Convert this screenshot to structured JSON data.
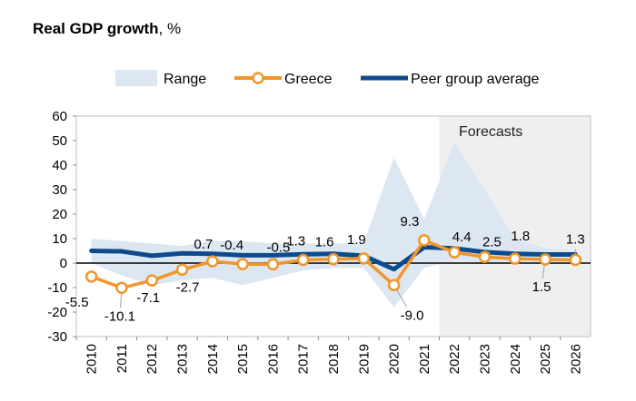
{
  "title": {
    "bold": "Real GDP growth",
    "rest": ", %"
  },
  "chart_data": {
    "type": "line",
    "title": "Real GDP growth, %",
    "x": [
      "2010",
      "2011",
      "2012",
      "2013",
      "2014",
      "2015",
      "2016",
      "2017",
      "2018",
      "2019",
      "2020",
      "2021",
      "2022",
      "2023",
      "2024",
      "2025",
      "2026"
    ],
    "ylim": [
      -30,
      60
    ],
    "yticks": [
      -30,
      -20,
      -10,
      0,
      10,
      20,
      30,
      40,
      50,
      60
    ],
    "forecast_start": "2022",
    "forecast_label": "Forecasts",
    "legend_position": "top",
    "series": [
      {
        "name": "Range",
        "kind": "band",
        "color": "#dce7f1",
        "low": [
          0,
          -5,
          -9,
          -7,
          -6,
          -9,
          -6,
          -3,
          -2,
          -2,
          -18,
          -2,
          1,
          0,
          0,
          0,
          0
        ],
        "high": [
          10,
          9,
          8,
          7,
          9,
          9,
          8,
          8,
          8,
          8,
          43,
          18,
          49,
          30,
          10,
          6,
          5
        ]
      },
      {
        "name": "Greece",
        "kind": "line-markers",
        "color": "#f0962a",
        "values": [
          -5.5,
          -10.1,
          -7.1,
          -2.7,
          0.7,
          -0.4,
          -0.5,
          1.3,
          1.6,
          1.9,
          -9.0,
          9.3,
          4.4,
          2.5,
          1.8,
          1.5,
          1.3
        ],
        "labels": [
          "-5.5",
          "-10.1",
          "-7.1",
          "-2.7",
          "0.7",
          "-0.4",
          "-0.5",
          "1.3",
          "1.6",
          "1.9",
          "-9.0",
          "9.3",
          "4.4",
          "2.5",
          "1.8",
          "1.5",
          "1.3"
        ]
      },
      {
        "name": "Peer group average",
        "kind": "line",
        "color": "#0d4a8b",
        "values": [
          5.0,
          4.8,
          3.0,
          4.0,
          3.8,
          3.2,
          3.2,
          3.6,
          3.8,
          3.0,
          -2.5,
          6.5,
          6.0,
          4.5,
          3.8,
          3.5,
          3.5
        ]
      }
    ]
  }
}
